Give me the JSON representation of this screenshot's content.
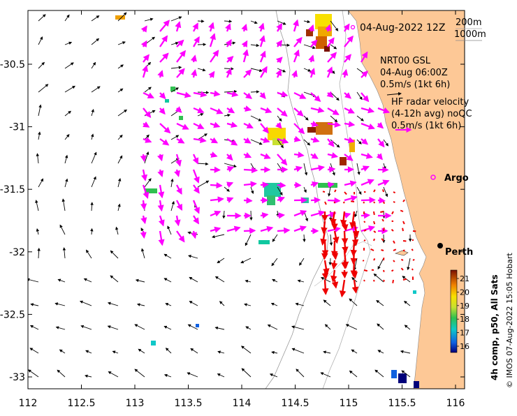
{
  "map": {
    "date_label": "04-Aug-2022 12Z",
    "depth_labels": [
      "200m",
      "1000m"
    ],
    "gsl_block": [
      "NRT00 GSL",
      "04-Aug 06:00Z",
      "0.5m/s (1kt 6h)"
    ],
    "hf_block": [
      "HF radar velocity",
      "(4-12h avg) noQC",
      "0.5m/s (1kt 6h)"
    ],
    "argo_label": "Argo",
    "city_label": "Perth",
    "x_ticks": [
      "112",
      "112.5",
      "113",
      "113.5",
      "114",
      "114.5",
      "115",
      "115.5",
      "116"
    ],
    "y_ticks": [
      "-30.5",
      "-31",
      "-31.5",
      "-32",
      "-32.5",
      "-33"
    ],
    "colorbar": {
      "label": "4h comp, p50, All Sats",
      "ticks": [
        "21",
        "20",
        "19",
        "18",
        "17",
        "16"
      ]
    },
    "credit": "© IMOS 07-Aug-2022 15:05 Hobart",
    "colors": {
      "land": "#FDC896",
      "gsl_arrows": "#FF00FF",
      "hf_arrows": "#EE0000",
      "model_arrows": "#000000"
    }
  }
}
